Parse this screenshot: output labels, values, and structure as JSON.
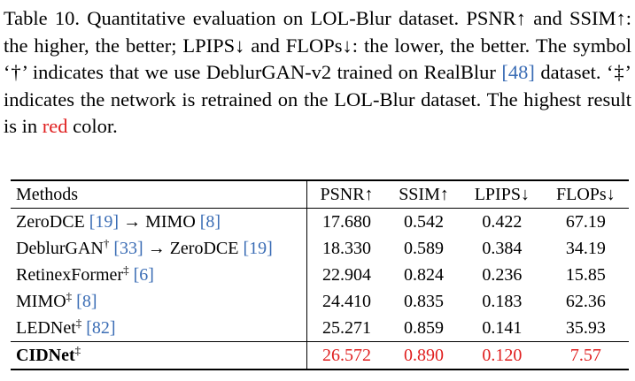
{
  "caption": {
    "seg1": "Table 10. Quantitative evaluation on LOL-Blur dataset. PSNR↑ and SSIM↑: the higher, the better; LPIPS↓ and FLOPs↓: the lower, the better. The symbol ‘†’ indicates that we use DeblurGAN-v2 trained on RealBlur ",
    "cite": "[48]",
    "seg2": " dataset. ‘‡’ indicates the network is retrained on the LOL-Blur dataset. The highest result is in ",
    "highlight": "red",
    "seg3": " color."
  },
  "colors": {
    "citation": "#3b6db5",
    "highlight": "#e02020"
  },
  "table": {
    "headers": [
      "Methods",
      "PSNR↑",
      "SSIM↑",
      "LPIPS↓",
      "FLOPs↓"
    ],
    "rows": [
      {
        "pre": "ZeroDCE ",
        "cite1": "[19]",
        "mid": " → MIMO ",
        "sup": "",
        "cite2": "[8]",
        "post": "",
        "values": [
          "17.680",
          "0.542",
          "0.422",
          "67.19"
        ]
      },
      {
        "pre": "DeblurGAN",
        "sup": "†",
        "mid": " ",
        "cite1": "[33]",
        "post": " → ZeroDCE ",
        "cite2": "[19]",
        "values": [
          "18.330",
          "0.589",
          "0.384",
          "34.19"
        ]
      },
      {
        "pre": "RetinexFormer",
        "sup": "‡",
        "mid": " ",
        "cite1": "[6]",
        "values": [
          "22.904",
          "0.824",
          "0.236",
          "15.85"
        ]
      },
      {
        "pre": "MIMO",
        "sup": "‡",
        "mid": " ",
        "cite1": "[8]",
        "values": [
          "24.410",
          "0.835",
          "0.183",
          "62.36"
        ]
      },
      {
        "pre": "LEDNet",
        "sup": "‡",
        "mid": " ",
        "cite1": "[82]",
        "values": [
          "25.271",
          "0.859",
          "0.141",
          "35.93"
        ]
      },
      {
        "pre": "CIDNet",
        "sup": "‡",
        "values": [
          "26.572",
          "0.890",
          "0.120",
          "7.57"
        ]
      }
    ]
  }
}
